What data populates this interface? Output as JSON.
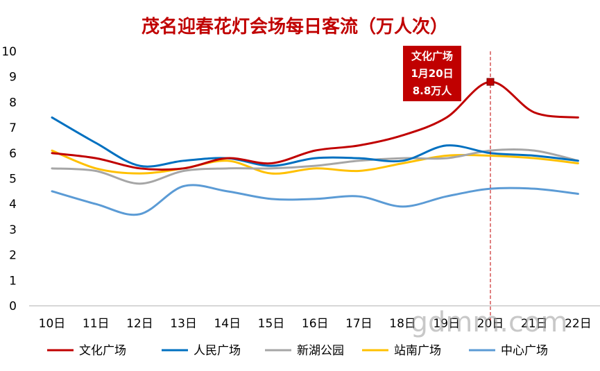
{
  "chart_data": {
    "type": "line",
    "title": "茂名迎春花灯会场每日客流（万人次）",
    "categories": [
      "10日",
      "11日",
      "12日",
      "13日",
      "14日",
      "15日",
      "16日",
      "17日",
      "18日",
      "19日",
      "20日",
      "21日",
      "22日"
    ],
    "ylim": [
      0,
      10
    ],
    "yticks": [
      0,
      1,
      2,
      3,
      4,
      5,
      6,
      7,
      8,
      9,
      10
    ],
    "grid": false,
    "legend_position": "bottom",
    "series": [
      {
        "name": "文化广场",
        "color": "#C00000",
        "values": [
          6.0,
          5.8,
          5.4,
          5.4,
          5.8,
          5.6,
          6.1,
          6.3,
          6.7,
          7.4,
          8.8,
          7.6,
          7.4
        ]
      },
      {
        "name": "人民广场",
        "color": "#0070C0",
        "values": [
          7.4,
          6.4,
          5.5,
          5.7,
          5.8,
          5.5,
          5.8,
          5.8,
          5.7,
          6.3,
          6.0,
          5.9,
          5.7
        ]
      },
      {
        "name": "新湖公园",
        "color": "#A6A6A6",
        "values": [
          5.4,
          5.3,
          4.8,
          5.3,
          5.4,
          5.4,
          5.5,
          5.7,
          5.8,
          5.8,
          6.1,
          6.1,
          5.7
        ]
      },
      {
        "name": "站南广场",
        "color": "#FFC000",
        "values": [
          6.1,
          5.4,
          5.2,
          5.4,
          5.7,
          5.2,
          5.4,
          5.3,
          5.6,
          5.9,
          5.9,
          5.8,
          5.6
        ]
      },
      {
        "name": "中心广场",
        "color": "#5B9BD5",
        "values": [
          4.5,
          4.0,
          3.6,
          4.7,
          4.5,
          4.2,
          4.2,
          4.3,
          3.9,
          4.3,
          4.6,
          4.6,
          4.4
        ]
      }
    ],
    "annotation": {
      "series_index": 0,
      "category_index": 10,
      "lines": [
        "文化广场",
        "1月20日",
        "8.8万人"
      ],
      "box_color": "#C00000",
      "text_color": "#ffffff"
    }
  },
  "watermark": "gdmm.com",
  "title_color": "#C00000"
}
